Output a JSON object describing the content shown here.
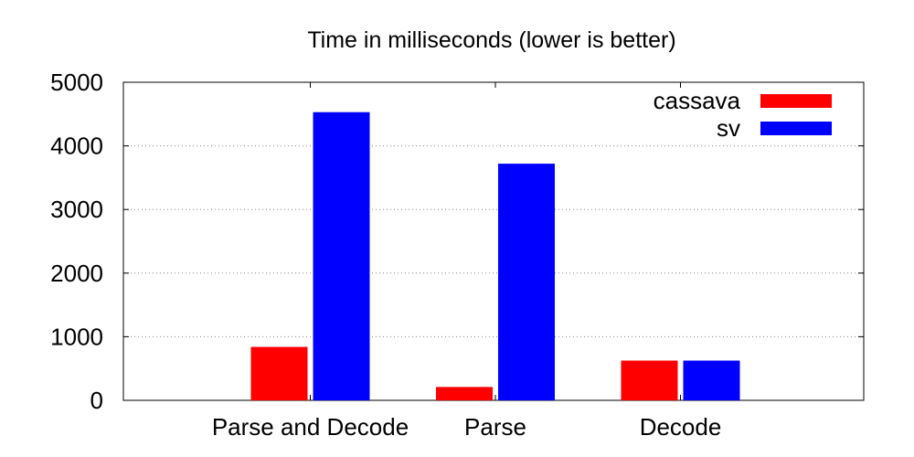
{
  "chart_data": {
    "type": "bar",
    "title": "Time in milliseconds (lower is better)",
    "xlabel": "",
    "ylabel": "",
    "categories": [
      "Parse and Decode",
      "Parse",
      "Decode"
    ],
    "series": [
      {
        "name": "cassava",
        "color": "#ff0000",
        "values": [
          840,
          210,
          625
        ]
      },
      {
        "name": "sv",
        "color": "#0000ff",
        "values": [
          4530,
          3720,
          625
        ]
      }
    ],
    "ylim": [
      0,
      5000
    ],
    "yticks": [
      "0",
      "1000",
      "2000",
      "3000",
      "4000",
      "5000"
    ],
    "grid": "horizontal dotted",
    "legend_position": "top-right"
  }
}
